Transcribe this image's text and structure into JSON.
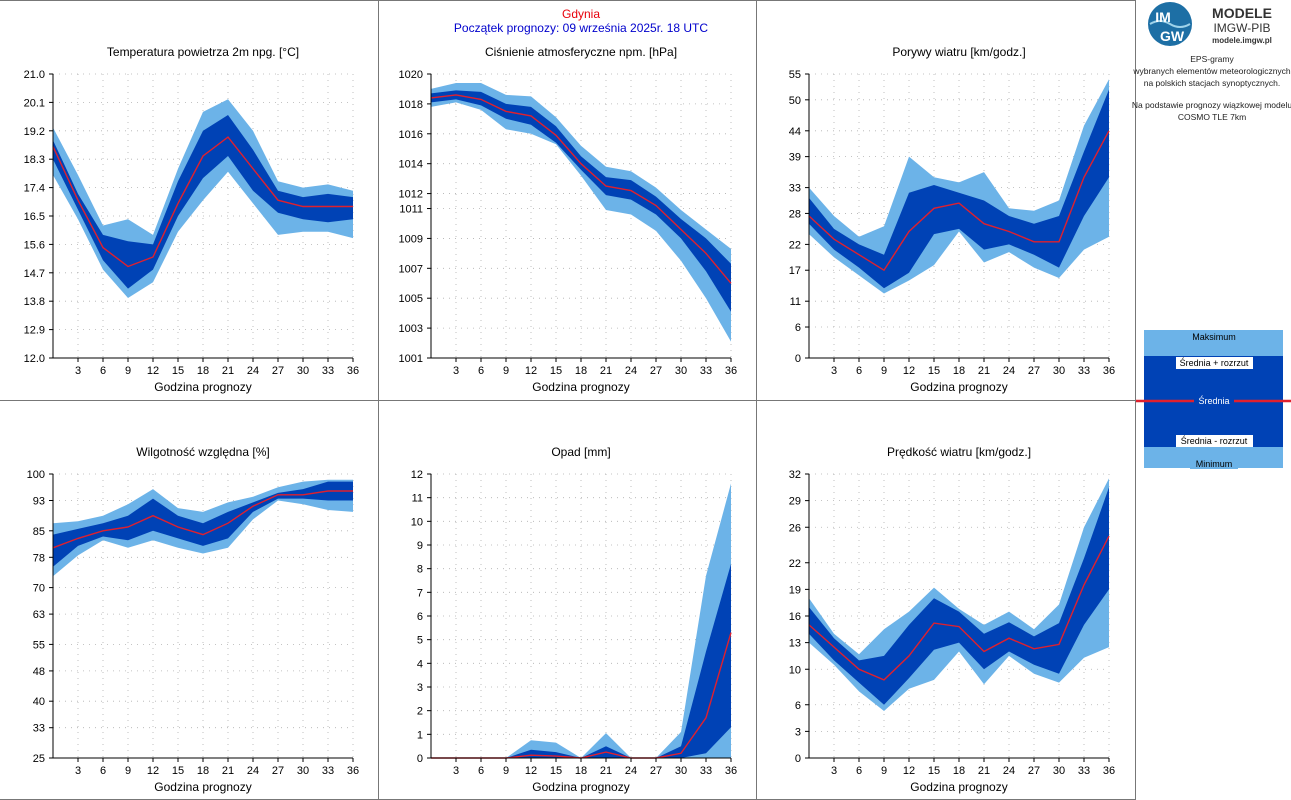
{
  "header": {
    "station": "Gdynia",
    "forecast_start": "Początek prognozy: 09 września 2025r. 18 UTC",
    "station_color": "#e8000b",
    "start_color": "#0000cc"
  },
  "logo": {
    "badge_text_top": "IM",
    "badge_text_bottom": "GW",
    "brand": "MODELE",
    "org": "IMGW-PIB",
    "site": "modele.imgw.pl"
  },
  "side_info": {
    "line1": "EPS-gramy",
    "line2": "wybranych elementów meteorologicznych",
    "line3": "na polskich stacjach  synoptycznych.",
    "line4": "Na podstawie prognozy wiązkowej modelu",
    "line5": "COSMO TLE 7km"
  },
  "legend": {
    "max": "Maksimum",
    "mean_plus": "Średnia + rozrzut",
    "mean": "Średnia",
    "mean_minus": "Średnia - rozrzut",
    "min": "Minimum"
  },
  "colors": {
    "envelope_outer": "#6cb3e8",
    "envelope_inner": "#0042b5",
    "mean_line": "#e0202e",
    "grid": "#b0b0b0"
  },
  "chart_data": [
    {
      "type": "area",
      "title": "Temperatura powietrza 2m npg. [°C]",
      "xlabel": "Godzina prognozy",
      "ylabel": "",
      "x": [
        0,
        3,
        6,
        9,
        12,
        15,
        18,
        21,
        24,
        27,
        30,
        33,
        36
      ],
      "x_ticks": [
        3,
        6,
        9,
        12,
        15,
        18,
        21,
        24,
        27,
        30,
        33,
        36
      ],
      "y_ticks": [
        "12.0",
        "12.9",
        "13.8",
        "14.7",
        "15.6",
        "16.5",
        "17.4",
        "18.3",
        "19.2",
        "20.1",
        "21.0"
      ],
      "ylim": [
        12.0,
        21.0
      ],
      "series": [
        {
          "name": "Maksimum",
          "values": [
            19.3,
            17.8,
            16.2,
            16.4,
            15.9,
            18.0,
            19.8,
            20.2,
            19.2,
            17.6,
            17.4,
            17.5,
            17.3
          ]
        },
        {
          "name": "Średnia + rozrzut",
          "values": [
            18.9,
            17.2,
            15.9,
            15.7,
            15.6,
            17.6,
            19.2,
            19.7,
            18.6,
            17.3,
            17.1,
            17.2,
            17.1
          ]
        },
        {
          "name": "Średnia",
          "values": [
            18.7,
            17.0,
            15.5,
            14.9,
            15.2,
            16.9,
            18.4,
            19.0,
            18.0,
            17.0,
            16.8,
            16.8,
            16.8
          ]
        },
        {
          "name": "Średnia - rozrzut",
          "values": [
            18.3,
            16.7,
            15.1,
            14.2,
            14.8,
            16.5,
            17.7,
            18.4,
            17.3,
            16.6,
            16.4,
            16.3,
            16.4
          ]
        },
        {
          "name": "Minimum",
          "values": [
            17.8,
            16.4,
            14.8,
            13.9,
            14.4,
            16.0,
            17.0,
            17.9,
            16.9,
            15.9,
            16.0,
            16.0,
            15.8
          ]
        }
      ]
    },
    {
      "type": "area",
      "title": "Ciśnienie atmosferyczne npm. [hPa]",
      "xlabel": "Godzina prognozy",
      "ylabel": "",
      "x": [
        0,
        3,
        6,
        9,
        12,
        15,
        18,
        21,
        24,
        27,
        30,
        33,
        36
      ],
      "x_ticks": [
        3,
        6,
        9,
        12,
        15,
        18,
        21,
        24,
        27,
        30,
        33,
        36
      ],
      "y_ticks": [
        "1001",
        "1003",
        "1005",
        "1007",
        "1009",
        "1011",
        "1012",
        "1014",
        "1016",
        "1018",
        "1020"
      ],
      "ylim": [
        1001.0,
        1020.0
      ],
      "series": [
        {
          "name": "Maksimum",
          "values": [
            1019.0,
            1019.4,
            1019.4,
            1018.6,
            1018.5,
            1017.1,
            1015.2,
            1013.8,
            1013.5,
            1012.4,
            1010.9,
            1009.6,
            1008.3
          ]
        },
        {
          "name": "Średnia + rozrzut",
          "values": [
            1018.7,
            1018.9,
            1018.8,
            1018.0,
            1017.8,
            1016.5,
            1014.5,
            1013.1,
            1012.9,
            1011.8,
            1010.3,
            1009.0,
            1007.3
          ]
        },
        {
          "name": "Średnia",
          "values": [
            1018.4,
            1018.6,
            1018.3,
            1017.5,
            1017.2,
            1015.9,
            1014.0,
            1012.5,
            1012.2,
            1011.2,
            1009.6,
            1008.0,
            1006.0
          ]
        },
        {
          "name": "Średnia - rozrzut",
          "values": [
            1018.1,
            1018.3,
            1017.9,
            1017.0,
            1016.6,
            1015.4,
            1013.6,
            1011.9,
            1011.6,
            1010.6,
            1009.0,
            1006.8,
            1004.1
          ]
        },
        {
          "name": "Minimum",
          "values": [
            1017.8,
            1018.1,
            1017.6,
            1016.3,
            1016.0,
            1015.3,
            1013.2,
            1010.9,
            1010.6,
            1009.5,
            1007.5,
            1005.0,
            1002.1
          ]
        }
      ]
    },
    {
      "type": "area",
      "title": "Porywy wiatru [km/godz.]",
      "xlabel": "Godzina prognozy",
      "ylabel": "",
      "x": [
        0,
        3,
        6,
        9,
        12,
        15,
        18,
        21,
        24,
        27,
        30,
        33,
        36
      ],
      "x_ticks": [
        3,
        6,
        9,
        12,
        15,
        18,
        21,
        24,
        27,
        30,
        33,
        36
      ],
      "y_ticks": [
        "0",
        "6",
        "11",
        "17",
        "22",
        "28",
        "33",
        "39",
        "44",
        "50",
        "55"
      ],
      "ylim": [
        0,
        55
      ],
      "series": [
        {
          "name": "Maksimum",
          "values": [
            33.0,
            27.5,
            23.5,
            25.5,
            39.0,
            35.0,
            34.0,
            36.0,
            29.0,
            28.5,
            30.5,
            45.0,
            54.0
          ]
        },
        {
          "name": "Średnia + rozrzut",
          "values": [
            31.0,
            25.0,
            22.0,
            20.0,
            32.0,
            33.5,
            32.0,
            30.5,
            27.5,
            26.0,
            27.5,
            40.0,
            52.0
          ]
        },
        {
          "name": "Średnia",
          "values": [
            27.5,
            23.0,
            20.0,
            17.0,
            24.5,
            29.0,
            30.0,
            26.0,
            24.5,
            22.5,
            22.5,
            35.0,
            44.0
          ]
        },
        {
          "name": "Średnia - rozrzut",
          "values": [
            26.0,
            21.0,
            17.5,
            13.5,
            16.5,
            24.0,
            25.0,
            21.0,
            22.0,
            20.0,
            17.5,
            27.5,
            35.0
          ]
        },
        {
          "name": "Minimum",
          "values": [
            24.0,
            19.5,
            16.0,
            12.5,
            15.0,
            18.0,
            24.5,
            18.5,
            20.5,
            17.5,
            15.5,
            21.0,
            23.5
          ]
        }
      ]
    },
    {
      "type": "area",
      "title": "Wilgotność względna [%]",
      "xlabel": "Godzina prognozy",
      "ylabel": "",
      "x": [
        0,
        3,
        6,
        9,
        12,
        15,
        18,
        21,
        24,
        27,
        30,
        33,
        36
      ],
      "x_ticks": [
        3,
        6,
        9,
        12,
        15,
        18,
        21,
        24,
        27,
        30,
        33,
        36
      ],
      "y_ticks": [
        "25",
        "33",
        "40",
        "48",
        "55",
        "63",
        "70",
        "78",
        "85",
        "93",
        "100"
      ],
      "ylim": [
        25,
        100
      ],
      "series": [
        {
          "name": "Maksimum",
          "values": [
            87.0,
            87.5,
            89.0,
            92.0,
            96.0,
            91.0,
            90.0,
            92.5,
            94.0,
            96.5,
            98.0,
            98.5,
            98.5
          ]
        },
        {
          "name": "Średnia + rozrzut",
          "values": [
            84.0,
            85.5,
            87.0,
            89.0,
            93.5,
            89.0,
            87.0,
            90.0,
            92.5,
            95.0,
            96.0,
            98.0,
            98.0
          ]
        },
        {
          "name": "Średnia",
          "values": [
            80.5,
            83.0,
            85.0,
            86.0,
            89.0,
            86.0,
            84.0,
            87.0,
            91.5,
            94.5,
            94.5,
            95.5,
            95.5
          ]
        },
        {
          "name": "Średnia - rozrzut",
          "values": [
            75.5,
            81.0,
            83.5,
            82.5,
            85.0,
            83.0,
            81.0,
            83.0,
            90.0,
            93.5,
            93.5,
            93.0,
            93.0
          ]
        },
        {
          "name": "Minimum",
          "values": [
            73.0,
            78.5,
            82.5,
            80.5,
            82.5,
            80.5,
            79.0,
            80.5,
            88.0,
            93.0,
            92.0,
            90.5,
            90.0
          ]
        }
      ]
    },
    {
      "type": "area",
      "title": "Opad [mm]",
      "xlabel": "Godzina prognozy",
      "ylabel": "",
      "x": [
        0,
        3,
        6,
        9,
        12,
        15,
        18,
        21,
        24,
        27,
        30,
        33,
        36
      ],
      "x_ticks": [
        3,
        6,
        9,
        12,
        15,
        18,
        21,
        24,
        27,
        30,
        33,
        36
      ],
      "y_ticks": [
        "0",
        "1",
        "2",
        "3",
        "4",
        "5",
        "6",
        "7",
        "8",
        "9",
        "10",
        "11",
        "12"
      ],
      "ylim": [
        0,
        12
      ],
      "series": [
        {
          "name": "Maksimum",
          "values": [
            0,
            0,
            0,
            0,
            0.75,
            0.65,
            0,
            1.05,
            0,
            0,
            1.1,
            7.7,
            11.6
          ]
        },
        {
          "name": "Średnia + rozrzut",
          "values": [
            0,
            0,
            0,
            0,
            0.35,
            0.25,
            0,
            0.5,
            0,
            0,
            0.5,
            4.5,
            8.2
          ]
        },
        {
          "name": "Średnia",
          "values": [
            0,
            0,
            0,
            0,
            0.12,
            0.08,
            0,
            0.25,
            0,
            0,
            0.2,
            1.7,
            5.3
          ]
        },
        {
          "name": "Średnia - rozrzut",
          "values": [
            0,
            0,
            0,
            0,
            0,
            0,
            0,
            0,
            0,
            0,
            0,
            0.2,
            1.3
          ]
        },
        {
          "name": "Minimum",
          "values": [
            0,
            0,
            0,
            0,
            0,
            0,
            0,
            0,
            0,
            0,
            0,
            0,
            0
          ]
        }
      ]
    },
    {
      "type": "area",
      "title": "Prędkość wiatru [km/godz.]",
      "xlabel": "Godzina prognozy",
      "ylabel": "",
      "x": [
        0,
        3,
        6,
        9,
        12,
        15,
        18,
        21,
        24,
        27,
        30,
        33,
        36
      ],
      "x_ticks": [
        3,
        6,
        9,
        12,
        15,
        18,
        21,
        24,
        27,
        30,
        33,
        36
      ],
      "y_ticks": [
        "0",
        "3",
        "6",
        "10",
        "13",
        "16",
        "19",
        "22",
        "26",
        "29",
        "32"
      ],
      "ylim": [
        0,
        32
      ],
      "series": [
        {
          "name": "Maksimum",
          "values": [
            18.0,
            14.0,
            11.7,
            14.5,
            16.5,
            19.2,
            16.8,
            15.0,
            16.5,
            14.5,
            17.3,
            26.0,
            31.5
          ]
        },
        {
          "name": "Średnia + rozrzut",
          "values": [
            17.0,
            13.5,
            11.0,
            11.5,
            15.0,
            18.0,
            16.5,
            14.0,
            15.3,
            13.7,
            15.2,
            22.5,
            30.5
          ]
        },
        {
          "name": "Średnia",
          "values": [
            15.0,
            12.5,
            10.0,
            8.8,
            11.5,
            15.2,
            14.8,
            12.0,
            13.5,
            12.3,
            12.8,
            19.5,
            25.0
          ]
        },
        {
          "name": "Średnia - rozrzut",
          "values": [
            14.0,
            11.0,
            8.5,
            6.0,
            9.0,
            12.2,
            13.0,
            10.0,
            12.0,
            10.5,
            9.5,
            15.0,
            19.0
          ]
        },
        {
          "name": "Minimum",
          "values": [
            13.0,
            10.5,
            7.5,
            5.3,
            7.8,
            8.8,
            12.0,
            8.3,
            11.5,
            9.5,
            8.5,
            11.3,
            12.5
          ]
        }
      ]
    }
  ]
}
